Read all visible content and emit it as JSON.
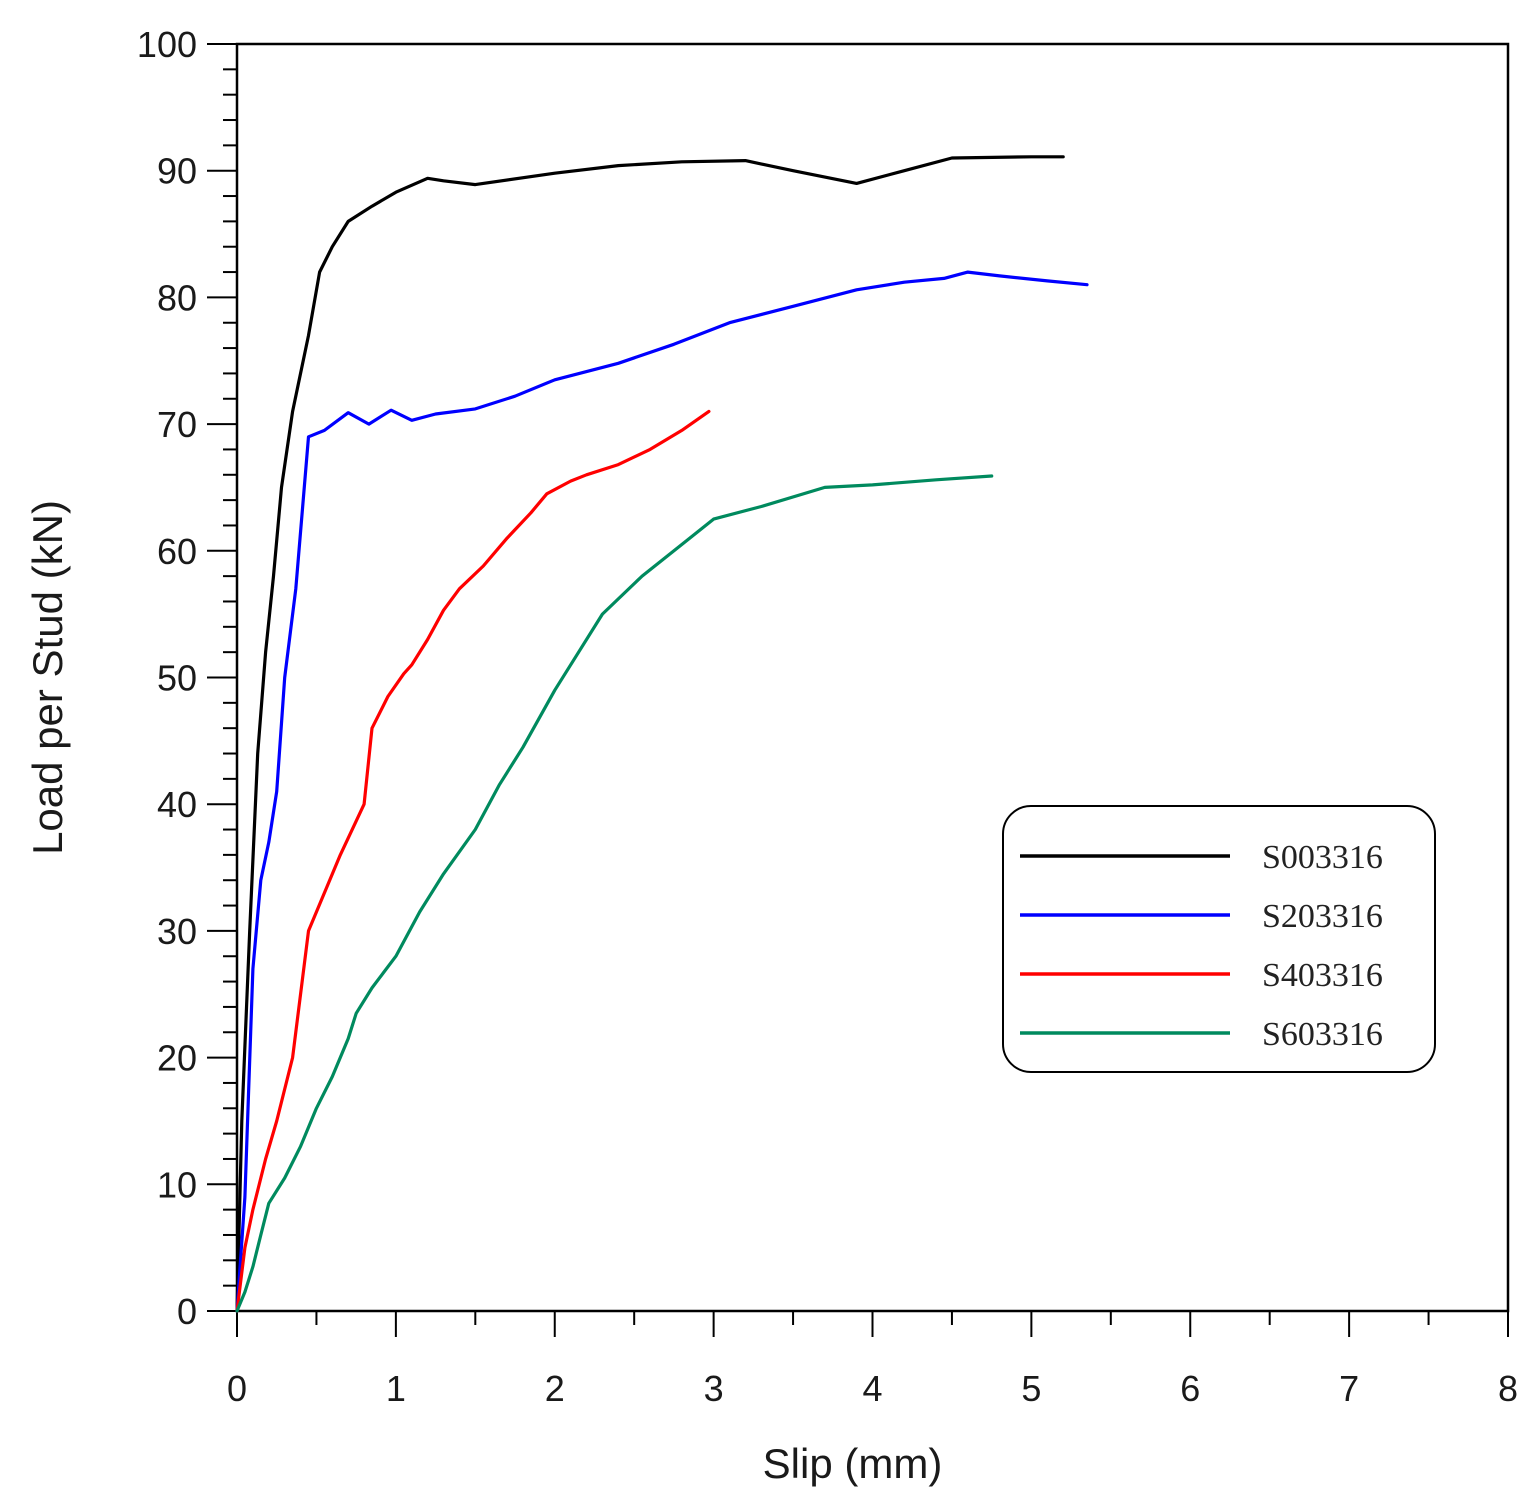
{
  "chart_data": {
    "type": "line",
    "title": "",
    "xlabel": "Slip (mm)",
    "ylabel": "Load per Stud (kN)",
    "xlim": [
      0,
      8
    ],
    "ylim": [
      0,
      100
    ],
    "xticks": [
      0,
      1,
      2,
      3,
      4,
      5,
      6,
      7,
      8
    ],
    "yticks": [
      0,
      10,
      20,
      30,
      40,
      50,
      60,
      70,
      80,
      90,
      100
    ],
    "grid": false,
    "legend_position": "center-right",
    "series": [
      {
        "name": "S003316",
        "color": "#000000",
        "points": [
          [
            0,
            0
          ],
          [
            0.03,
            15
          ],
          [
            0.08,
            30
          ],
          [
            0.13,
            44
          ],
          [
            0.18,
            52
          ],
          [
            0.23,
            58
          ],
          [
            0.28,
            65
          ],
          [
            0.35,
            71
          ],
          [
            0.45,
            77
          ],
          [
            0.52,
            82
          ],
          [
            0.6,
            84
          ],
          [
            0.7,
            86
          ],
          [
            0.85,
            87.2
          ],
          [
            1.0,
            88.3
          ],
          [
            1.2,
            89.4
          ],
          [
            1.3,
            89.2
          ],
          [
            1.5,
            88.9
          ],
          [
            2.0,
            89.8
          ],
          [
            2.4,
            90.4
          ],
          [
            2.8,
            90.7
          ],
          [
            3.2,
            90.8
          ],
          [
            3.5,
            90.0
          ],
          [
            3.9,
            89.0
          ],
          [
            4.2,
            90.0
          ],
          [
            4.5,
            91.0
          ],
          [
            5.0,
            91.1
          ],
          [
            5.2,
            91.1
          ]
        ]
      },
      {
        "name": "S203316",
        "color": "#0000ff",
        "points": [
          [
            0,
            0
          ],
          [
            0.05,
            9
          ],
          [
            0.1,
            27
          ],
          [
            0.15,
            34
          ],
          [
            0.2,
            37
          ],
          [
            0.25,
            41
          ],
          [
            0.3,
            50
          ],
          [
            0.37,
            57
          ],
          [
            0.45,
            69
          ],
          [
            0.55,
            69.5
          ],
          [
            0.7,
            70.9
          ],
          [
            0.83,
            70.0
          ],
          [
            0.97,
            71.1
          ],
          [
            1.1,
            70.3
          ],
          [
            1.25,
            70.8
          ],
          [
            1.5,
            71.2
          ],
          [
            1.75,
            72.2
          ],
          [
            2.0,
            73.5
          ],
          [
            2.4,
            74.8
          ],
          [
            2.75,
            76.3
          ],
          [
            3.1,
            78.0
          ],
          [
            3.5,
            79.3
          ],
          [
            3.9,
            80.6
          ],
          [
            4.2,
            81.2
          ],
          [
            4.45,
            81.5
          ],
          [
            4.6,
            82.0
          ],
          [
            4.8,
            81.7
          ],
          [
            5.1,
            81.3
          ],
          [
            5.35,
            81.0
          ]
        ]
      },
      {
        "name": "S403316",
        "color": "#ff0000",
        "points": [
          [
            0,
            0
          ],
          [
            0.05,
            5
          ],
          [
            0.1,
            8
          ],
          [
            0.18,
            12
          ],
          [
            0.25,
            15
          ],
          [
            0.35,
            20
          ],
          [
            0.45,
            30
          ],
          [
            0.55,
            33
          ],
          [
            0.65,
            36
          ],
          [
            0.8,
            40
          ],
          [
            0.85,
            46
          ],
          [
            0.95,
            48.5
          ],
          [
            1.05,
            50.3
          ],
          [
            1.1,
            51
          ],
          [
            1.2,
            53
          ],
          [
            1.3,
            55.3
          ],
          [
            1.4,
            57
          ],
          [
            1.55,
            58.8
          ],
          [
            1.7,
            61
          ],
          [
            1.85,
            63
          ],
          [
            1.95,
            64.5
          ],
          [
            2.1,
            65.5
          ],
          [
            2.2,
            66
          ],
          [
            2.4,
            66.8
          ],
          [
            2.6,
            68
          ],
          [
            2.8,
            69.5
          ],
          [
            2.97,
            71.0
          ]
        ]
      },
      {
        "name": "S603316",
        "color": "#008a5e",
        "points": [
          [
            0,
            0
          ],
          [
            0.05,
            1.5
          ],
          [
            0.1,
            3.5
          ],
          [
            0.15,
            6
          ],
          [
            0.2,
            8.5
          ],
          [
            0.3,
            10.5
          ],
          [
            0.4,
            13
          ],
          [
            0.5,
            16
          ],
          [
            0.6,
            18.5
          ],
          [
            0.7,
            21.5
          ],
          [
            0.75,
            23.5
          ],
          [
            0.85,
            25.5
          ],
          [
            1.0,
            28
          ],
          [
            1.15,
            31.5
          ],
          [
            1.3,
            34.5
          ],
          [
            1.5,
            38
          ],
          [
            1.65,
            41.5
          ],
          [
            1.8,
            44.5
          ],
          [
            2.0,
            49
          ],
          [
            2.15,
            52
          ],
          [
            2.3,
            55
          ],
          [
            2.55,
            58
          ],
          [
            2.8,
            60.5
          ],
          [
            3.0,
            62.5
          ],
          [
            3.3,
            63.5
          ],
          [
            3.7,
            65
          ],
          [
            4.0,
            65.2
          ],
          [
            4.4,
            65.6
          ],
          [
            4.75,
            65.9
          ]
        ]
      }
    ]
  }
}
